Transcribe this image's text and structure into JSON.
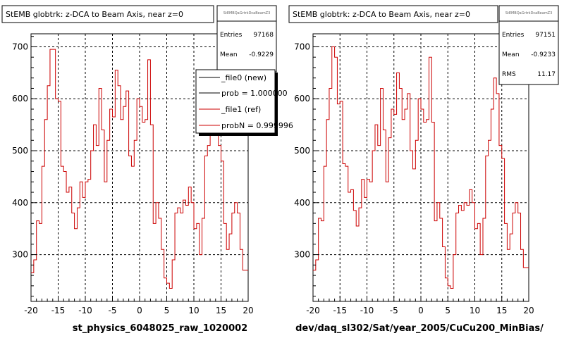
{
  "chart_data": [
    {
      "type": "line",
      "title": "StEMB globtrk: z-DCA to Beam Axis, near z=0",
      "xlabel": "st_physics_6048025_raw_1020002",
      "ylabel": "",
      "xlim": [
        -20,
        20
      ],
      "ylim": [
        210,
        725
      ],
      "x_ticks": [
        "-20",
        "-15",
        "-10",
        "-5",
        "0",
        "5",
        "10",
        "15",
        "20"
      ],
      "y_ticks": [
        "300",
        "400",
        "500",
        "600",
        "700"
      ],
      "grid": true,
      "stats": {
        "name": "StEMBQaGrtrkDcaBeamZ3",
        "rows": [
          {
            "label": "Entries",
            "value": "97168"
          },
          {
            "label": "Mean",
            "value": "-0.9229"
          }
        ]
      },
      "legend": {
        "placement": "top-right",
        "entries": [
          {
            "label": "_file0 (new)",
            "color": "#000000"
          },
          {
            "label": "prob = 1.000000",
            "color": "#000000"
          },
          {
            "label": "_file1 (ref)",
            "color": "#cc0000"
          },
          {
            "label": "probN = 0.999996",
            "color": "#cc0000"
          }
        ]
      },
      "series": [
        {
          "color": "#cc0000",
          "step_width": 0.5,
          "x": [
            -20,
            -19.5,
            -19,
            -18.5,
            -18,
            -17.5,
            -17,
            -16.5,
            -16,
            -15.5,
            -15,
            -14.5,
            -14,
            -13.5,
            -13,
            -12.5,
            -12,
            -11.5,
            -11,
            -10.5,
            -10,
            -9.5,
            -9,
            -8.5,
            -8,
            -7.5,
            -7,
            -6.5,
            -6,
            -5.5,
            -5,
            -4.5,
            -4,
            -3.5,
            -3,
            -2.5,
            -2,
            -1.5,
            -1,
            -0.5,
            0,
            0.5,
            1,
            1.5,
            2,
            2.5,
            3,
            3.5,
            4,
            4.5,
            5,
            5.5,
            6,
            6.5,
            7,
            7.5,
            8,
            8.5,
            9,
            9.5,
            10,
            10.5,
            11,
            11.5,
            12,
            12.5,
            13,
            13.5,
            14,
            14.5,
            15,
            15.5,
            16,
            16.5,
            17,
            17.5,
            18,
            18.5,
            19,
            19.5
          ],
          "y": [
            265,
            290,
            365,
            360,
            470,
            560,
            625,
            695,
            695,
            600,
            595,
            470,
            460,
            420,
            430,
            380,
            350,
            390,
            440,
            410,
            440,
            445,
            500,
            550,
            510,
            620,
            540,
            440,
            520,
            580,
            565,
            655,
            625,
            560,
            585,
            615,
            490,
            470,
            520,
            600,
            585,
            555,
            560,
            675,
            550,
            360,
            400,
            370,
            310,
            255,
            245,
            235,
            290,
            380,
            390,
            380,
            405,
            395,
            430,
            400,
            350,
            360,
            300,
            370,
            490,
            510,
            580,
            640,
            600,
            510,
            480,
            360,
            310,
            340,
            380,
            400,
            380,
            310,
            270,
            270
          ]
        }
      ]
    },
    {
      "type": "line",
      "title": "StEMB globtrk: z-DCA to Beam Axis, near z=0",
      "xlabel": "dev/daq_sl302/Sat/year_2005/CuCu200_MinBias/",
      "ylabel": "",
      "xlim": [
        -20,
        20
      ],
      "ylim": [
        210,
        725
      ],
      "x_ticks": [
        "-20",
        "-15",
        "-10",
        "-5",
        "0",
        "5",
        "10",
        "15",
        "20"
      ],
      "y_ticks": [
        "300",
        "400",
        "500",
        "600",
        "700"
      ],
      "grid": true,
      "stats": {
        "name": "StEMBQaGrtrkDcaBeamZ3",
        "rows": [
          {
            "label": "Entries",
            "value": "97151"
          },
          {
            "label": "Mean",
            "value": "-0.9233"
          },
          {
            "label": "RMS",
            "value": "11.17"
          }
        ]
      },
      "series": [
        {
          "color": "#cc0000",
          "step_width": 0.5,
          "x": [
            -20,
            -19.5,
            -19,
            -18.5,
            -18,
            -17.5,
            -17,
            -16.5,
            -16,
            -15.5,
            -15,
            -14.5,
            -14,
            -13.5,
            -13,
            -12.5,
            -12,
            -11.5,
            -11,
            -10.5,
            -10,
            -9.5,
            -9,
            -8.5,
            -8,
            -7.5,
            -7,
            -6.5,
            -6,
            -5.5,
            -5,
            -4.5,
            -4,
            -3.5,
            -3,
            -2.5,
            -2,
            -1.5,
            -1,
            -0.5,
            0,
            0.5,
            1,
            1.5,
            2,
            2.5,
            3,
            3.5,
            4,
            4.5,
            5,
            5.5,
            6,
            6.5,
            7,
            7.5,
            8,
            8.5,
            9,
            9.5,
            10,
            10.5,
            11,
            11.5,
            12,
            12.5,
            13,
            13.5,
            14,
            14.5,
            15,
            15.5,
            16,
            16.5,
            17,
            17.5,
            18,
            18.5,
            19,
            19.5
          ],
          "y": [
            270,
            290,
            370,
            365,
            470,
            560,
            620,
            700,
            680,
            590,
            595,
            475,
            470,
            420,
            425,
            385,
            355,
            390,
            445,
            410,
            445,
            440,
            500,
            550,
            510,
            620,
            540,
            440,
            525,
            580,
            570,
            650,
            620,
            560,
            580,
            610,
            500,
            465,
            520,
            600,
            580,
            555,
            560,
            680,
            555,
            365,
            400,
            370,
            315,
            255,
            240,
            235,
            300,
            380,
            395,
            385,
            400,
            395,
            425,
            400,
            350,
            360,
            300,
            370,
            490,
            520,
            580,
            640,
            610,
            510,
            485,
            360,
            310,
            340,
            380,
            400,
            380,
            310,
            275,
            275
          ]
        }
      ]
    }
  ]
}
